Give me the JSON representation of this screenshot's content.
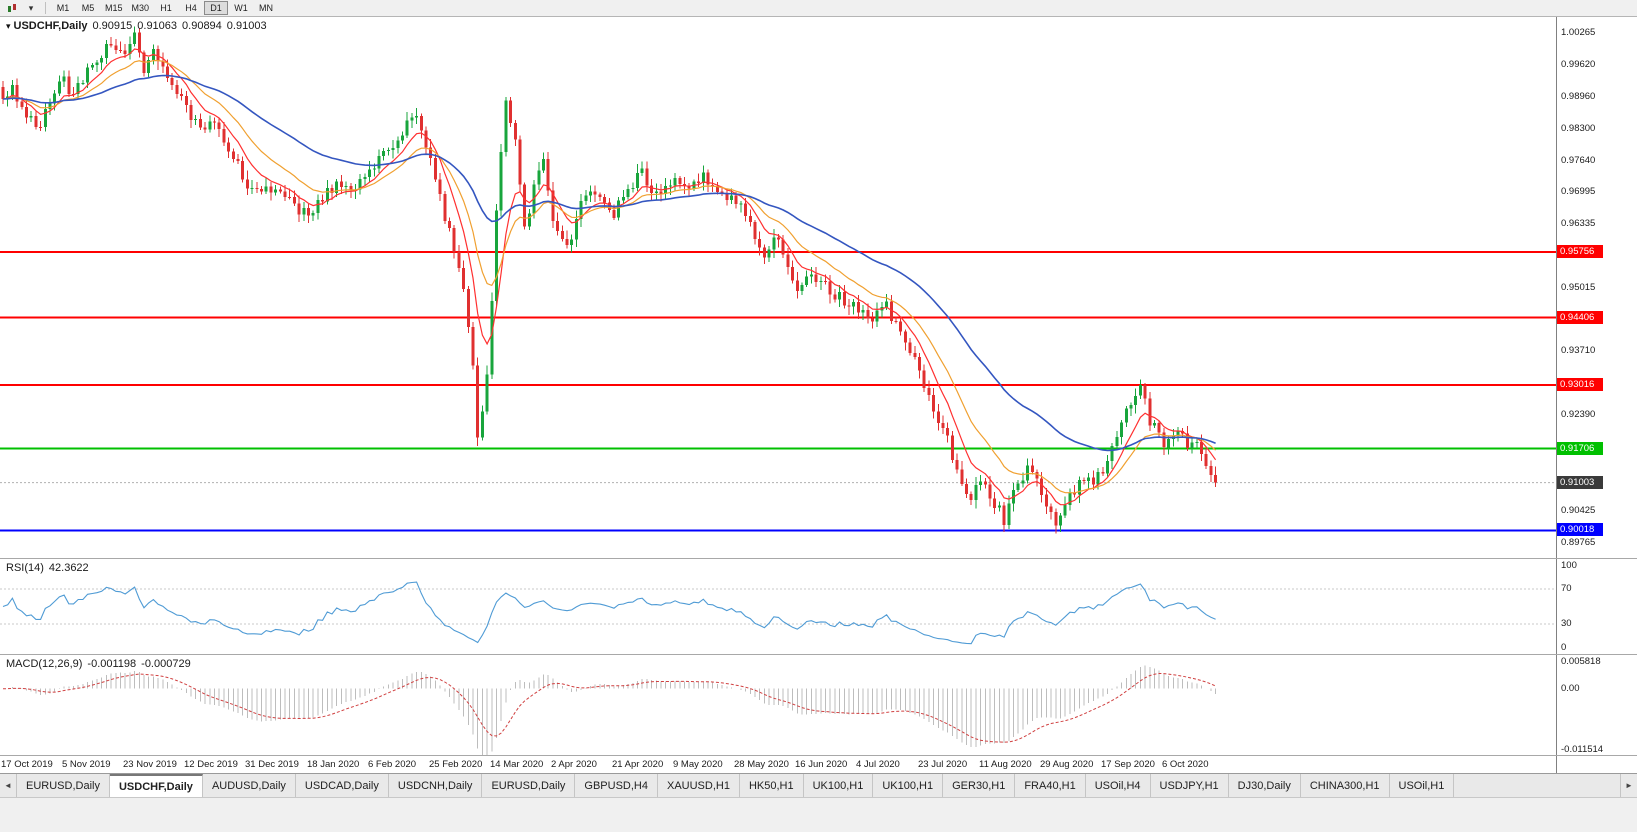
{
  "icons": {
    "title_marker": "▾",
    "dropdown": "▾",
    "tab_left": "◄",
    "tab_right": "►"
  },
  "toolbar": {
    "timeframes": [
      "M1",
      "M5",
      "M15",
      "M30",
      "H1",
      "H4",
      "D1",
      "W1",
      "MN"
    ],
    "active_timeframe": "D1"
  },
  "chart_header": {
    "symbol": "USDCHF,Daily",
    "open": "0.90915",
    "high": "0.91063",
    "low": "0.90894",
    "close": "0.91003"
  },
  "rsi_panel": {
    "title": "RSI(14)",
    "value": "42.3622",
    "axis_labels": [
      "100",
      "70",
      "30",
      "0"
    ],
    "levels": [
      70,
      30
    ],
    "line_color": "#4F9BD5"
  },
  "macd_panel": {
    "title": "MACD(12,26,9)",
    "main_value": "-0.001198",
    "signal_value": "-0.000729",
    "axis_labels": [
      "0.005818",
      "0.00",
      "-0.011514"
    ],
    "hist_color": "#BDBDBD",
    "signal_color": "#D04040"
  },
  "tabs": {
    "active_index": 1,
    "items": [
      "EURUSD,Daily",
      "USDCHF,Daily",
      "AUDUSD,Daily",
      "USDCAD,Daily",
      "USDCNH,Daily",
      "EURUSD,Daily",
      "GBPUSD,H4",
      "XAUUSD,H1",
      "HK50,H1",
      "UK100,H1",
      "UK100,H1",
      "GER30,H1",
      "FRA40,H1",
      "USOil,H4",
      "USDJPY,H1",
      "DJ30,Daily",
      "CHINA300,H1",
      "USOil,H1"
    ]
  },
  "chart_data": {
    "type": "candlestick",
    "symbol": "USDCHF",
    "timeframe": "Daily",
    "ohlc_current": {
      "open": 0.90915,
      "high": 0.91063,
      "low": 0.90894,
      "close": 0.91003
    },
    "ylim": [
      0.8945,
      1.006
    ],
    "candle_count": 259,
    "label_step": 13,
    "up_color": "#18A53C",
    "down_color": "#E03030",
    "axis_labels": [
      "1.00265",
      "0.99620",
      "0.98960",
      "0.98300",
      "0.97640",
      "0.96995",
      "0.96335",
      "0.95015",
      "0.93710",
      "0.92390",
      "0.90425",
      "0.89765"
    ],
    "level_lines": [
      {
        "label": "0.95756",
        "price": 0.95756,
        "color": "#FF0000",
        "name": "resistance-1"
      },
      {
        "label": "0.94406",
        "price": 0.94406,
        "color": "#FF0000",
        "name": "resistance-2"
      },
      {
        "label": "0.93016",
        "price": 0.93016,
        "color": "#FF0000",
        "name": "resistance-3"
      },
      {
        "label": "0.91706",
        "price": 0.91706,
        "color": "#00C000",
        "name": "support-green"
      },
      {
        "label": "0.90018",
        "price": 0.90018,
        "color": "#0000FF",
        "name": "support-blue"
      }
    ],
    "current_price": {
      "label": "0.91003",
      "price": 0.91003,
      "bg": "#3A3A3A"
    },
    "date_labels": [
      "17 Oct 2019",
      "5 Nov 2019",
      "23 Nov 2019",
      "12 Dec 2019",
      "31 Dec 2019",
      "18 Jan 2020",
      "6 Feb 2020",
      "25 Feb 2020",
      "14 Mar 2020",
      "2 Apr 2020",
      "21 Apr 2020",
      "9 May 2020",
      "28 May 2020",
      "16 Jun 2020",
      "4 Jul 2020",
      "23 Jul 2020",
      "11 Aug 2020",
      "29 Aug 2020",
      "17 Sep 2020",
      "6 Oct 2020"
    ],
    "price_path": [
      [
        0,
        0.9885
      ],
      [
        2,
        0.992
      ],
      [
        5,
        0.9855
      ],
      [
        8,
        0.984
      ],
      [
        11,
        0.99
      ],
      [
        13,
        0.993
      ],
      [
        15,
        0.9895
      ],
      [
        18,
        0.9945
      ],
      [
        21,
        0.9985
      ],
      [
        24,
        1.0005
      ],
      [
        26,
        0.999
      ],
      [
        28,
        1.0025
      ],
      [
        30,
        0.995
      ],
      [
        32,
        0.9985
      ],
      [
        35,
        0.993
      ],
      [
        39,
        0.987
      ],
      [
        42,
        0.983
      ],
      [
        45,
        0.9855
      ],
      [
        48,
        0.979
      ],
      [
        52,
        0.9715
      ],
      [
        55,
        0.969
      ],
      [
        58,
        0.9715
      ],
      [
        62,
        0.9675
      ],
      [
        65,
        0.9645
      ],
      [
        68,
        0.9685
      ],
      [
        71,
        0.972
      ],
      [
        74,
        0.9695
      ],
      [
        78,
        0.9745
      ],
      [
        82,
        0.978
      ],
      [
        86,
        0.9845
      ],
      [
        88,
        0.985
      ],
      [
        91,
        0.9775
      ],
      [
        94,
        0.965
      ],
      [
        96,
        0.958
      ],
      [
        98,
        0.95
      ],
      [
        100,
        0.933
      ],
      [
        101,
        0.9195
      ],
      [
        103,
        0.932
      ],
      [
        105,
        0.965
      ],
      [
        107,
        0.989
      ],
      [
        109,
        0.98
      ],
      [
        111,
        0.962
      ],
      [
        113,
        0.971
      ],
      [
        115,
        0.9755
      ],
      [
        117,
        0.964
      ],
      [
        120,
        0.9585
      ],
      [
        123,
        0.967
      ],
      [
        126,
        0.9705
      ],
      [
        130,
        0.9655
      ],
      [
        133,
        0.97
      ],
      [
        136,
        0.974
      ],
      [
        139,
        0.969
      ],
      [
        143,
        0.9725
      ],
      [
        146,
        0.97
      ],
      [
        149,
        0.973
      ],
      [
        152,
        0.9705
      ],
      [
        156,
        0.968
      ],
      [
        159,
        0.9635
      ],
      [
        162,
        0.9575
      ],
      [
        165,
        0.961
      ],
      [
        169,
        0.9495
      ],
      [
        172,
        0.953
      ],
      [
        175,
        0.9505
      ],
      [
        178,
        0.948
      ],
      [
        182,
        0.946
      ],
      [
        185,
        0.944
      ],
      [
        188,
        0.9465
      ],
      [
        191,
        0.9405
      ],
      [
        195,
        0.933
      ],
      [
        198,
        0.9255
      ],
      [
        201,
        0.9185
      ],
      [
        204,
        0.9105
      ],
      [
        206,
        0.9075
      ],
      [
        208,
        0.9115
      ],
      [
        211,
        0.906
      ],
      [
        213,
        0.9025
      ],
      [
        215,
        0.909
      ],
      [
        218,
        0.913
      ],
      [
        221,
        0.9085
      ],
      [
        224,
        0.9
      ],
      [
        227,
        0.9075
      ],
      [
        230,
        0.911
      ],
      [
        232,
        0.909
      ],
      [
        234,
        0.913
      ],
      [
        236,
        0.9165
      ],
      [
        239,
        0.9245
      ],
      [
        242,
        0.9295
      ],
      [
        244,
        0.923
      ],
      [
        247,
        0.9185
      ],
      [
        250,
        0.9215
      ],
      [
        252,
        0.9165
      ],
      [
        254,
        0.918
      ],
      [
        256,
        0.914
      ],
      [
        258,
        0.91003
      ]
    ],
    "moving_averages": [
      {
        "period": 8,
        "color": "#FF3030"
      },
      {
        "period": 17,
        "color": "#F0A030"
      },
      {
        "period": 45,
        "color": "#3456C0"
      }
    ],
    "rsi": {
      "period": 14,
      "current": 42.3622,
      "range": [
        0,
        100
      ]
    },
    "macd": {
      "fast": 12,
      "slow": 26,
      "signal": 9,
      "current_main": -0.001198,
      "current_signal": -0.000729,
      "ylim": [
        -0.0118,
        0.006
      ]
    }
  }
}
